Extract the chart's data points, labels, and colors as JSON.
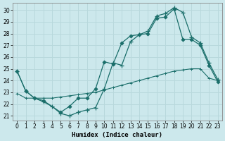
{
  "xlabel": "Humidex (Indice chaleur)",
  "ylabel": "",
  "background_color": "#cce8ec",
  "grid_color": "#b8d8dc",
  "line_color": "#1a6e6a",
  "xlim": [
    -0.5,
    23.5
  ],
  "ylim": [
    20.6,
    30.6
  ],
  "xticks": [
    0,
    1,
    2,
    3,
    4,
    5,
    6,
    7,
    8,
    9,
    10,
    11,
    12,
    13,
    14,
    15,
    16,
    17,
    18,
    19,
    20,
    21,
    22,
    23
  ],
  "yticks": [
    21,
    22,
    23,
    24,
    25,
    26,
    27,
    28,
    29,
    30
  ],
  "series1_x": [
    0,
    1,
    2,
    3,
    4,
    5,
    6,
    7,
    8,
    9,
    10,
    11,
    12,
    13,
    14,
    15,
    16,
    17,
    18,
    19,
    20,
    21,
    22,
    23
  ],
  "series1_y": [
    24.8,
    23.1,
    22.5,
    22.2,
    21.8,
    21.2,
    21.0,
    21.3,
    21.5,
    21.7,
    23.3,
    25.5,
    25.3,
    27.3,
    27.9,
    28.2,
    29.5,
    29.7,
    30.2,
    29.8,
    27.7,
    27.2,
    25.5,
    24.1
  ],
  "series2_x": [
    0,
    1,
    2,
    3,
    5,
    6,
    7,
    8,
    9,
    10,
    11,
    12,
    13,
    14,
    15,
    16,
    17,
    18,
    19,
    20,
    21,
    22,
    23
  ],
  "series2_y": [
    24.8,
    23.1,
    22.5,
    22.3,
    21.3,
    21.8,
    22.5,
    22.5,
    23.3,
    25.6,
    25.4,
    27.2,
    27.8,
    27.9,
    28.0,
    29.3,
    29.4,
    30.1,
    27.5,
    27.5,
    27.0,
    25.3,
    23.9
  ],
  "series3_x": [
    0,
    1,
    2,
    3,
    4,
    5,
    6,
    7,
    8,
    9,
    10,
    11,
    12,
    13,
    14,
    15,
    16,
    17,
    18,
    19,
    20,
    21,
    22,
    23
  ],
  "series3_y": [
    22.9,
    22.5,
    22.5,
    22.5,
    22.5,
    22.6,
    22.7,
    22.8,
    22.9,
    23.0,
    23.2,
    23.4,
    23.6,
    23.8,
    24.0,
    24.2,
    24.4,
    24.6,
    24.8,
    24.9,
    25.0,
    25.0,
    24.2,
    24.0
  ],
  "series_color": "#1a6e6a",
  "marker1": "+",
  "marker2": "D",
  "marker3": "+"
}
